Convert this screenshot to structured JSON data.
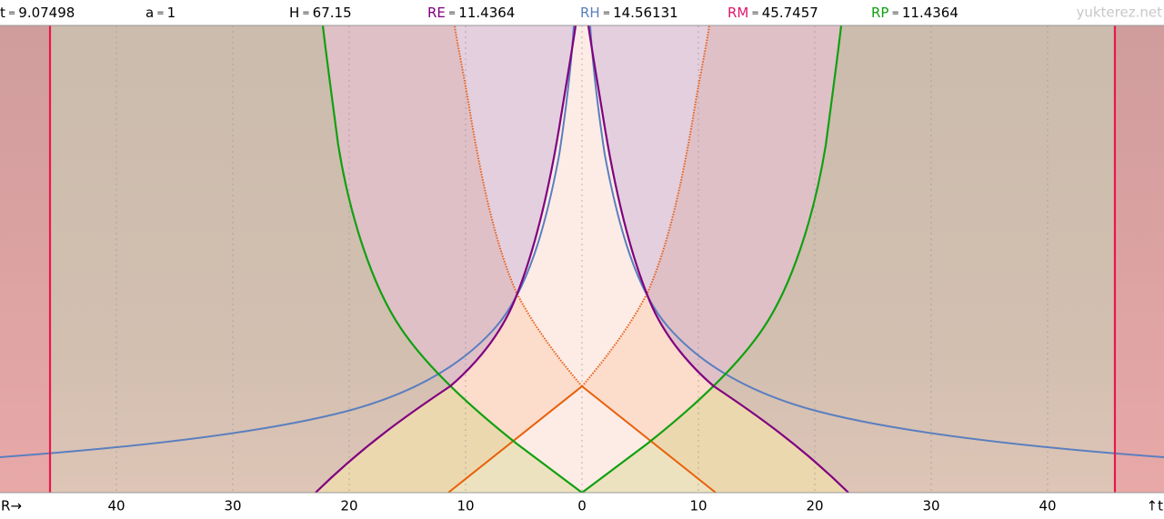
{
  "header": {
    "separator": "=",
    "items": [
      {
        "label": "t",
        "value": "9.07498",
        "color": "#000000"
      },
      {
        "label": "a",
        "value": "1",
        "color": "#000000"
      },
      {
        "label": "H",
        "value": "67.15",
        "color": "#000000"
      },
      {
        "label": "RE",
        "value": "11.4364",
        "color": "#800080"
      },
      {
        "label": "RH",
        "value": "14.56131",
        "color": "#5b7fbf"
      },
      {
        "label": "RM",
        "value": "45.7457",
        "color": "#e0186c"
      },
      {
        "label": "RP",
        "value": "11.4364",
        "color": "#10a010"
      }
    ],
    "site": "yukterez.net"
  },
  "axis": {
    "x_label": "R→",
    "y_label": "↑t",
    "ticks": [
      "40",
      "30",
      "20",
      "10",
      "0",
      "10",
      "20",
      "30",
      "40"
    ]
  }
}
